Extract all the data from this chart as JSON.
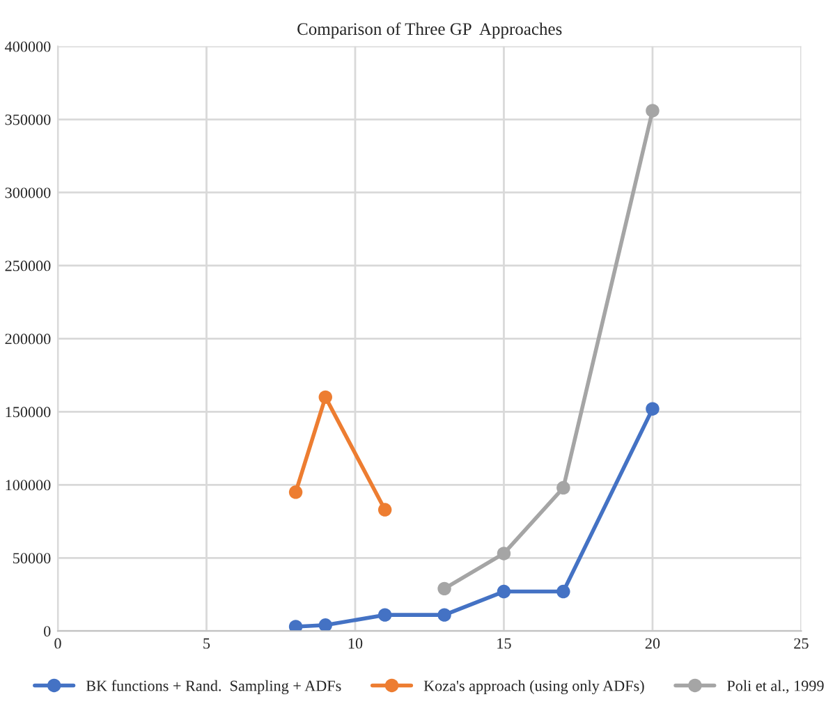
{
  "chart_data": {
    "type": "line",
    "title": "Comparison of Three GP  Approaches",
    "xlim": [
      0,
      25
    ],
    "xticks": [
      0,
      5,
      10,
      15,
      20,
      25
    ],
    "ylim": [
      0,
      400000
    ],
    "yticks": [
      0,
      50000,
      100000,
      150000,
      200000,
      250000,
      300000,
      350000,
      400000
    ],
    "grid": true,
    "legend": "bottom",
    "marker": "circle",
    "line_style": "solid",
    "series": [
      {
        "name": "BK functions + Rand.  Sampling + ADFs",
        "color": "#4472c4",
        "x": [
          8,
          9,
          11,
          13,
          15,
          17,
          20
        ],
        "values": [
          3000,
          4000,
          11000,
          11000,
          27000,
          27000,
          152000
        ]
      },
      {
        "name": "Koza's approach (using only ADFs)",
        "color": "#ed7d31",
        "x": [
          8,
          9,
          11
        ],
        "values": [
          95000,
          160000,
          83000
        ]
      },
      {
        "name": "Poli et al., 1999",
        "color": "#a5a5a5",
        "x": [
          13,
          15,
          17,
          20
        ],
        "values": [
          29000,
          53000,
          98000,
          356000
        ]
      }
    ]
  }
}
